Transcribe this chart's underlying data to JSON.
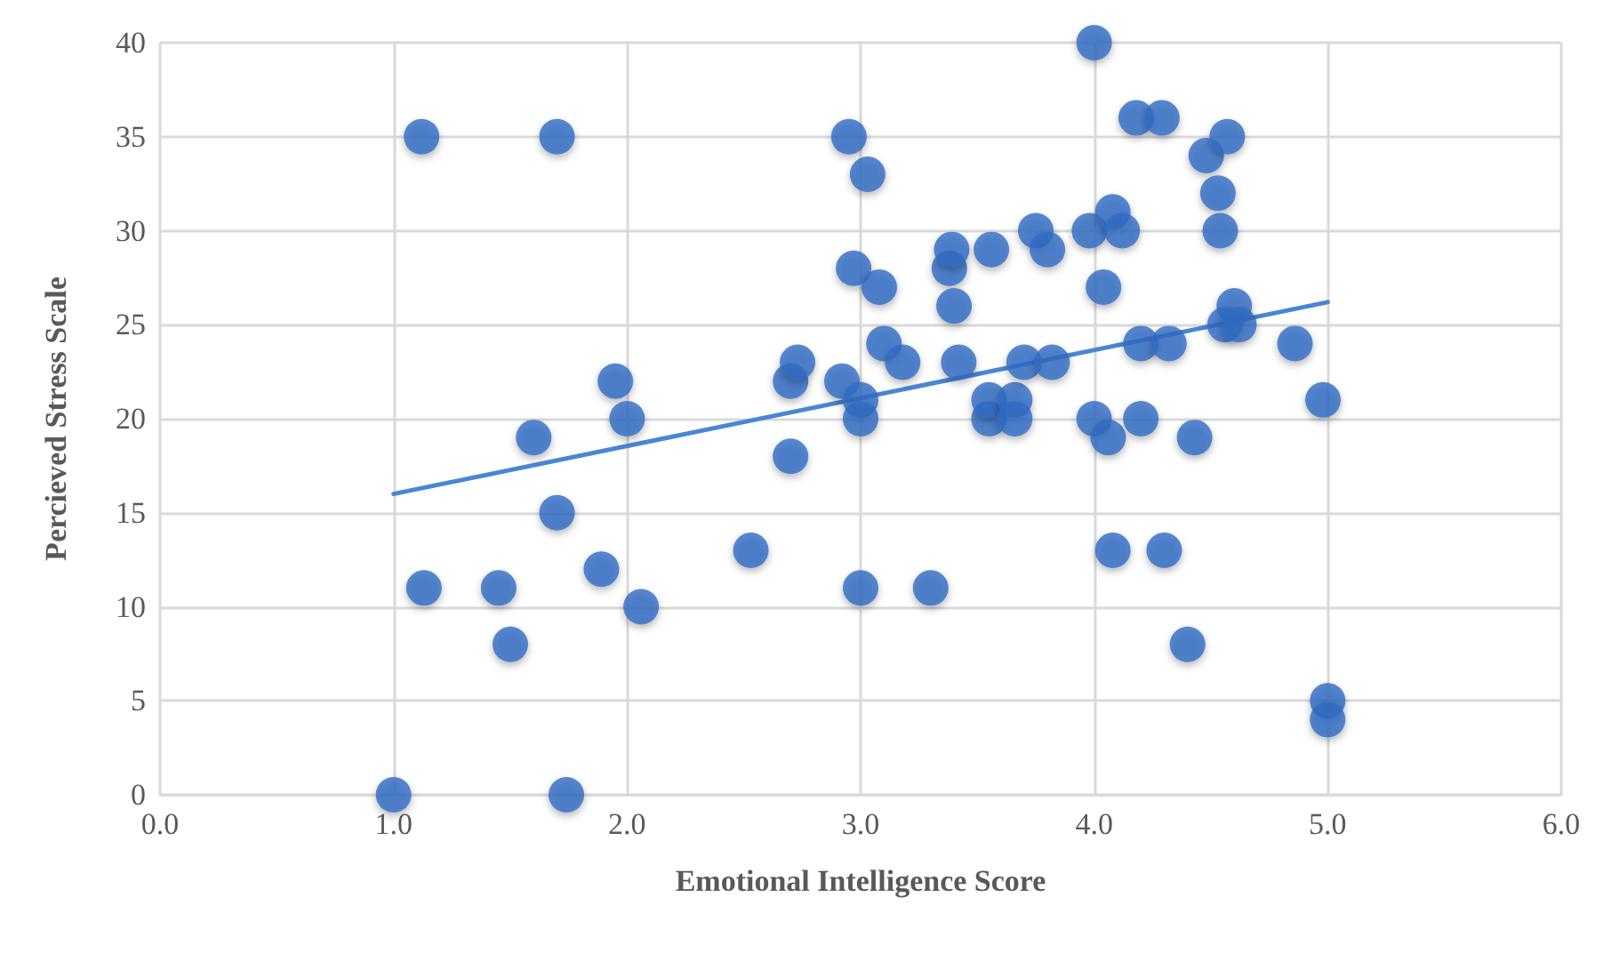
{
  "chart_data": {
    "type": "scatter",
    "xlabel": "Emotional Intelligence Score",
    "ylabel": "Percieved Stress Scale",
    "xlim": [
      0,
      6
    ],
    "xticks": [
      {
        "value": 0,
        "label": "0.0"
      },
      {
        "value": 1,
        "label": "1.0"
      },
      {
        "value": 2,
        "label": "2.0"
      },
      {
        "value": 3,
        "label": "3.0"
      },
      {
        "value": 4,
        "label": "4.0"
      },
      {
        "value": 5,
        "label": "5.0"
      },
      {
        "value": 6,
        "label": "6.0"
      }
    ],
    "ylim": [
      0,
      40
    ],
    "yticks": [
      0,
      5,
      10,
      15,
      20,
      25,
      30,
      35,
      40
    ],
    "grid": true,
    "marker": "circle",
    "series": [
      {
        "color": "#2f6cc4",
        "x": [
          1.0,
          1.12,
          1.13,
          1.45,
          1.5,
          1.6,
          1.7,
          1.7,
          1.74,
          1.89,
          1.95,
          2.0,
          2.06,
          2.53,
          2.7,
          2.7,
          2.73,
          2.92,
          2.95,
          3.03,
          2.97,
          3.0,
          3.0,
          3.0,
          3.08,
          3.1,
          3.18,
          3.3,
          3.38,
          3.39,
          3.4,
          3.42,
          3.56,
          3.55,
          3.55,
          3.66,
          3.66,
          3.7,
          3.75,
          3.8,
          3.82,
          3.98,
          4.0,
          4.0,
          4.04,
          4.06,
          4.08,
          4.12,
          4.08,
          4.18,
          4.2,
          4.2,
          4.29,
          4.3,
          4.32,
          4.43,
          4.4,
          4.48,
          4.53,
          4.54,
          4.57,
          4.6,
          4.56,
          4.62,
          4.86,
          4.98,
          5.0,
          5.0
        ],
        "values": [
          0,
          35,
          11,
          11,
          8,
          19,
          35,
          15,
          0,
          12,
          22,
          20,
          10,
          13,
          18,
          22,
          23,
          22,
          35,
          33,
          28,
          21,
          20,
          11,
          27,
          24,
          23,
          11,
          28,
          29,
          26,
          23,
          29,
          20,
          21,
          21,
          20,
          23,
          30,
          29,
          23,
          30,
          40,
          20,
          27,
          19,
          31,
          30,
          13,
          36,
          24,
          20,
          36,
          13,
          24,
          19,
          8,
          34,
          32,
          30,
          35,
          26,
          25,
          25,
          24,
          21,
          5,
          4
        ]
      },
      {
        "type": "line",
        "color": "#4a86d4",
        "marker": "none",
        "x": [
          1.0,
          5.0
        ],
        "values": [
          16,
          26.2
        ]
      }
    ]
  }
}
